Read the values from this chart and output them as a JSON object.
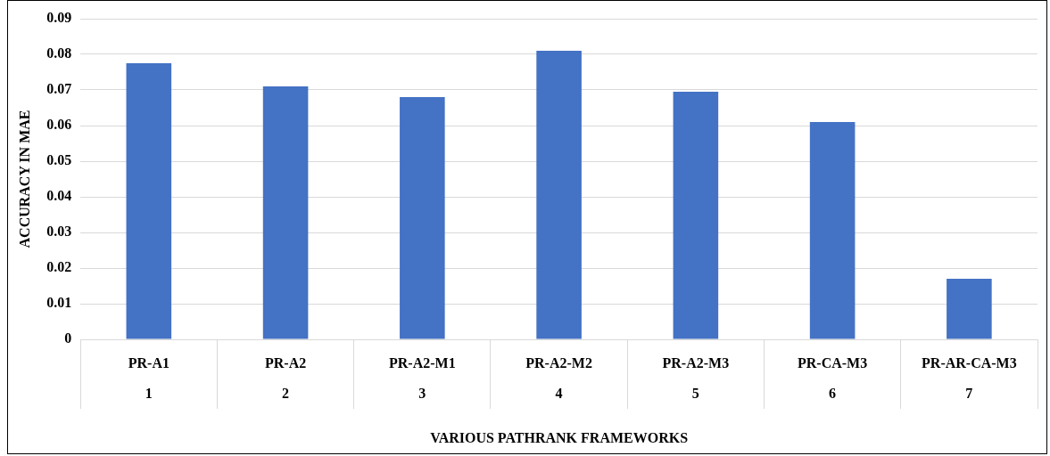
{
  "chart_data": {
    "type": "bar",
    "xlabel": "VARIOUS PATHRANK FRAMEWORKS",
    "ylabel": "ACCURACY IN MAE",
    "categories": [
      "PR-A1\n1",
      "PR-A2\n2",
      "PR-A2-M1\n3",
      "PR-A2-M2\n4",
      "PR-A2-M3\n5",
      "PR-CA-M3\n6",
      "PR-AR-CA-M3\n7"
    ],
    "values": [
      0.0775,
      0.071,
      0.068,
      0.081,
      0.0695,
      0.061,
      0.017
    ],
    "color": "#4472c4",
    "ylim": [
      0,
      0.09
    ],
    "yticks": [
      0,
      0.01,
      0.02,
      0.03,
      0.04,
      0.05,
      0.06,
      0.07,
      0.08,
      0.09
    ],
    "grid": "y",
    "legend": false
  }
}
